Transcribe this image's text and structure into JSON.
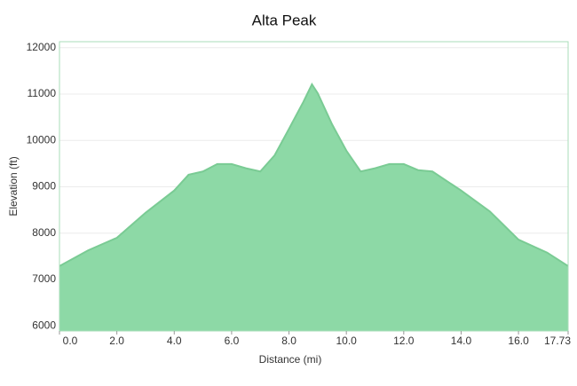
{
  "chart_data": {
    "type": "area",
    "title": "Alta Peak",
    "x_label": "Distance   (mi)",
    "y_label": "Elevation (ft)",
    "x": [
      0,
      1,
      2,
      3,
      4,
      4.5,
      5,
      5.5,
      6,
      6.5,
      7,
      7.5,
      8,
      8.5,
      8.8,
      9,
      9.5,
      10,
      10.5,
      11,
      11.5,
      12,
      12.5,
      13,
      14,
      15,
      16,
      17,
      17.73
    ],
    "values": [
      7290,
      7630,
      7900,
      8440,
      8920,
      9260,
      9330,
      9490,
      9490,
      9400,
      9330,
      9680,
      10250,
      10830,
      11210,
      11020,
      10350,
      9780,
      9330,
      9400,
      9490,
      9490,
      9360,
      9330,
      8920,
      8470,
      7860,
      7580,
      7290
    ],
    "color": "#8dd9a6",
    "line_color": "#7acb94",
    "xlim": [
      0,
      17.73
    ],
    "xticks": [
      {
        "value": 0,
        "label": "0.0"
      },
      {
        "value": 2,
        "label": "2.0"
      },
      {
        "value": 4,
        "label": "4.0"
      },
      {
        "value": 6,
        "label": "6.0"
      },
      {
        "value": 8,
        "label": "8.0"
      },
      {
        "value": 10,
        "label": "10.0"
      },
      {
        "value": 12,
        "label": "12.0"
      },
      {
        "value": 14,
        "label": "14.0"
      },
      {
        "value": 16,
        "label": "16.0"
      },
      17.73
    ],
    "ylim": [
      5890,
      12130
    ],
    "yticks": [
      6000,
      7000,
      8000,
      9000,
      10000,
      11000,
      12000
    ],
    "grid": true
  }
}
